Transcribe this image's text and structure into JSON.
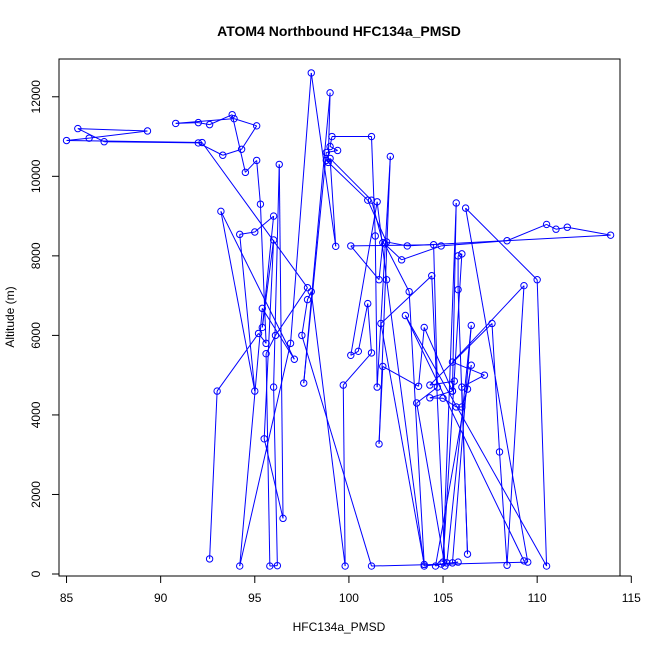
{
  "chart_data": {
    "type": "line",
    "title": "ATOM4 Northbound HFC134a_PMSD",
    "xlabel": "HFC134a_PMSD",
    "ylabel": "Altitude (m)",
    "xlim": [
      84.6,
      114.4
    ],
    "ylim": [
      -50,
      12950
    ],
    "xticks": [
      85,
      90,
      95,
      100,
      105,
      110,
      115
    ],
    "yticks": [
      0,
      2000,
      4000,
      6000,
      8000,
      10000,
      12000
    ],
    "grid": false,
    "line_color": "#0000ff",
    "series": [
      {
        "marker": "open-circle",
        "points": [
          [
            92.6,
            380
          ],
          [
            93.0,
            4600
          ],
          [
            95.2,
            6050
          ],
          [
            95.6,
            5800
          ],
          [
            95.3,
            9300
          ],
          [
            95.1,
            10400
          ],
          [
            94.5,
            10100
          ],
          [
            93.8,
            11550
          ],
          [
            92.6,
            11300
          ],
          [
            92.0,
            11350
          ],
          [
            90.8,
            11330
          ],
          [
            93.9,
            11450
          ],
          [
            95.1,
            11270
          ],
          [
            94.3,
            10680
          ],
          [
            93.3,
            10530
          ],
          [
            92.0,
            10840
          ],
          [
            87.0,
            10870
          ],
          [
            85.6,
            11200
          ],
          [
            89.3,
            11140
          ],
          [
            86.2,
            10960
          ],
          [
            85.0,
            10900
          ],
          [
            92.2,
            10850
          ],
          [
            97.8,
            7200
          ],
          [
            96.1,
            6000
          ],
          [
            95.6,
            5540
          ],
          [
            95.8,
            200
          ],
          [
            96.2,
            210
          ],
          [
            96.0,
            4700
          ],
          [
            96.3,
            10300
          ],
          [
            96.5,
            1400
          ],
          [
            95.5,
            3400
          ],
          [
            96.0,
            8400
          ],
          [
            95.4,
            6200
          ],
          [
            96.0,
            9000
          ],
          [
            95.0,
            8600
          ],
          [
            94.2,
            8540
          ],
          [
            95.0,
            4600
          ],
          [
            93.2,
            9120
          ],
          [
            97.1,
            5400
          ],
          [
            95.4,
            6680
          ],
          [
            94.2,
            200
          ],
          [
            96.9,
            5800
          ],
          [
            98.0,
            12600
          ],
          [
            99.3,
            8240
          ],
          [
            99.0,
            10450
          ],
          [
            101.2,
            9400
          ],
          [
            101.8,
            8330
          ],
          [
            101.6,
            7400
          ],
          [
            100.1,
            8250
          ],
          [
            104.5,
            8280
          ],
          [
            104.7,
            4700
          ],
          [
            103.6,
            4300
          ],
          [
            105.1,
            200
          ],
          [
            104.4,
            7500
          ],
          [
            101.7,
            6300
          ],
          [
            104.0,
            240
          ],
          [
            103.2,
            7100
          ],
          [
            101.9,
            8300
          ],
          [
            102.8,
            7900
          ],
          [
            104.9,
            8250
          ],
          [
            108.4,
            8380
          ],
          [
            110.5,
            8790
          ],
          [
            111.0,
            8670
          ],
          [
            111.6,
            8720
          ],
          [
            113.9,
            8520
          ],
          [
            103.1,
            8250
          ],
          [
            102.0,
            8350
          ],
          [
            101.0,
            9400
          ],
          [
            98.8,
            10400
          ],
          [
            98.9,
            10350
          ],
          [
            99.0,
            12100
          ],
          [
            97.6,
            4800
          ],
          [
            98.8,
            10600
          ],
          [
            99.4,
            10650
          ],
          [
            99.0,
            10750
          ],
          [
            99.1,
            11000
          ],
          [
            101.2,
            11000
          ],
          [
            101.4,
            8500
          ],
          [
            101.5,
            4700
          ],
          [
            102.2,
            10500
          ],
          [
            101.6,
            3270
          ],
          [
            101.8,
            5220
          ],
          [
            103.7,
            4720
          ],
          [
            104.0,
            6200
          ],
          [
            105.5,
            4600
          ],
          [
            105.7,
            9330
          ],
          [
            105.0,
            300
          ],
          [
            106.0,
            8050
          ],
          [
            105.8,
            8000
          ],
          [
            105.8,
            7150
          ],
          [
            106.3,
            500
          ],
          [
            106.0,
            4700
          ],
          [
            107.2,
            5000
          ],
          [
            105.5,
            5330
          ],
          [
            109.3,
            7250
          ],
          [
            108.4,
            220
          ],
          [
            108.0,
            3070
          ],
          [
            107.6,
            6300
          ],
          [
            104.3,
            4750
          ],
          [
            105.6,
            4850
          ],
          [
            105.5,
            4600
          ],
          [
            104.3,
            4430
          ],
          [
            105.0,
            4420
          ],
          [
            105.7,
            4200
          ],
          [
            106.0,
            4200
          ],
          [
            106.3,
            4650
          ],
          [
            106.5,
            5250
          ],
          [
            104.6,
            200
          ],
          [
            104.9,
            250
          ],
          [
            105.2,
            280
          ],
          [
            106.5,
            6250
          ],
          [
            105.5,
            280
          ],
          [
            105.8,
            300
          ],
          [
            104.0,
            200
          ],
          [
            102.0,
            7400
          ],
          [
            101.5,
            9360
          ],
          [
            100.1,
            5500
          ],
          [
            100.5,
            5600
          ],
          [
            101.0,
            6800
          ],
          [
            101.2,
            5560
          ],
          [
            99.7,
            4750
          ],
          [
            99.8,
            200
          ],
          [
            98.0,
            7100
          ],
          [
            97.8,
            6900
          ],
          [
            97.5,
            6000
          ],
          [
            101.2,
            200
          ],
          [
            109.5,
            300
          ],
          [
            106.2,
            9200
          ],
          [
            110.0,
            7400
          ],
          [
            110.5,
            200
          ],
          [
            103.0,
            6500
          ],
          [
            109.3,
            330
          ]
        ]
      }
    ]
  }
}
